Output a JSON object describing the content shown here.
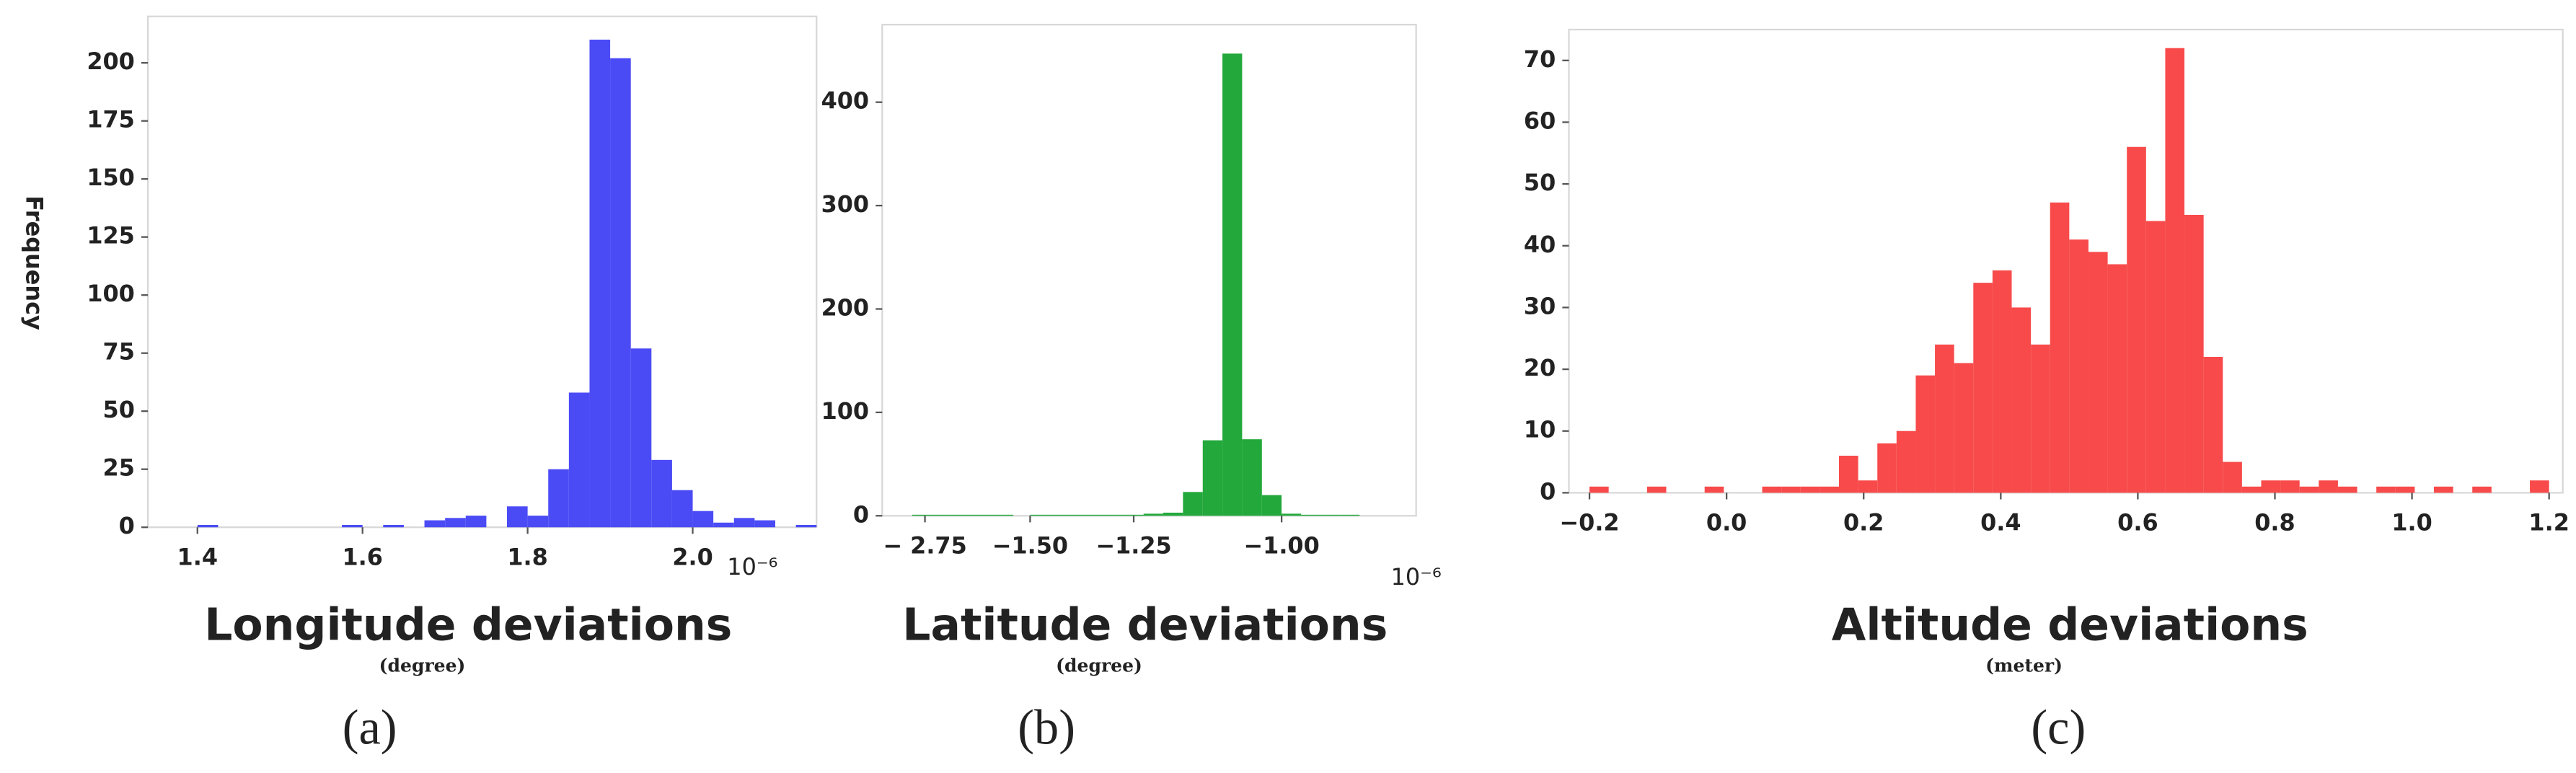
{
  "chart_data": [
    {
      "type": "histogram",
      "color": "#4b4bf6",
      "ylabel": "Frequency",
      "xlabel": "Longitude deviations",
      "unit_label": "(degree)",
      "caption": "(a)",
      "offset_label": "10⁻⁶",
      "bins": [
        1.375,
        1.4,
        1.425,
        1.45,
        1.475,
        1.5,
        1.525,
        1.55,
        1.575,
        1.6,
        1.625,
        1.65,
        1.675,
        1.7,
        1.725,
        1.75,
        1.775,
        1.8,
        1.825,
        1.85,
        1.875,
        1.9,
        1.925,
        1.95,
        1.975,
        2.0,
        2.025,
        2.05,
        2.075,
        2.1,
        2.125,
        2.15
      ],
      "values": [
        0,
        1,
        0,
        0,
        0,
        0,
        0,
        0,
        1,
        0,
        1,
        0,
        3,
        4,
        5,
        0,
        9,
        5,
        25,
        58,
        210,
        202,
        77,
        29,
        16,
        7,
        2,
        4,
        3,
        0,
        1
      ],
      "xlim": [
        1.34,
        2.15
      ],
      "xticks": [
        1.4,
        1.6,
        1.8,
        {
          "value": 2.0,
          "label": "2.0"
        }
      ],
      "ylim": [
        0,
        220
      ],
      "yticks": [
        0,
        25,
        50,
        75,
        100,
        125,
        150,
        175,
        200
      ]
    },
    {
      "type": "histogram",
      "color": "#23a83b",
      "xlabel": "Latitude deviations",
      "unit_label": "(degree)",
      "caption": "(b)",
      "offset_label": "10⁻⁶",
      "bins": [
        -2.9,
        -2.5,
        -2.1,
        -1.7,
        -1.5,
        -1.3,
        -1.2667,
        -1.2333,
        -1.2,
        -1.1667,
        -1.1333,
        -1.1,
        -1.0667,
        -1.0333,
        -1.0,
        -0.9667,
        -0.9333,
        -0.9,
        -0.8667
      ],
      "values": [
        1,
        1,
        1,
        0,
        1,
        1,
        1,
        2,
        3,
        23,
        73,
        447,
        74,
        20,
        2,
        1,
        1,
        1
      ],
      "xlim": [
        -3.25,
        -0.77
      ],
      "xticks": [
        {
          "value": -2.75,
          "label": "− 2.75"
        },
        {
          "value": -1.5,
          "label": "−1.50"
        },
        {
          "value": -1.25,
          "label": "−1.25"
        },
        {
          "value": -1.0,
          "label": "−1.00"
        }
      ],
      "ylim": [
        0,
        475
      ],
      "yticks": [
        0,
        100,
        200,
        300,
        400
      ]
    },
    {
      "type": "histogram",
      "color": "#f84a4a",
      "xlabel": "Altitude deviations",
      "unit_label": "(meter)",
      "caption": "(c)",
      "bins": [
        -0.2,
        -0.172,
        -0.144,
        -0.116,
        -0.088,
        -0.06,
        -0.032,
        -0.004,
        0.024,
        0.052,
        0.08,
        0.108,
        0.136,
        0.164,
        0.192,
        0.22,
        0.248,
        0.276,
        0.304,
        0.332,
        0.36,
        0.388,
        0.416,
        0.444,
        0.472,
        0.5,
        0.528,
        0.556,
        0.584,
        0.612,
        0.64,
        0.668,
        0.696,
        0.724,
        0.752,
        0.78,
        0.808,
        0.836,
        0.864,
        0.892,
        0.92,
        0.948,
        0.976,
        1.004,
        1.032,
        1.06,
        1.088,
        1.116,
        1.144,
        1.172,
        1.2
      ],
      "values": [
        1,
        0,
        0,
        1,
        0,
        0,
        1,
        0,
        0,
        1,
        1,
        1,
        1,
        6,
        2,
        8,
        10,
        19,
        24,
        21,
        34,
        36,
        30,
        24,
        47,
        41,
        39,
        37,
        56,
        44,
        72,
        45,
        22,
        5,
        1,
        2,
        2,
        1,
        2,
        1,
        0,
        1,
        1,
        0,
        1,
        0,
        1,
        0,
        0,
        2
      ],
      "xlim": [
        -0.23,
        1.22
      ],
      "xticks": [
        {
          "value": -0.2,
          "label": "−0.2"
        },
        {
          "value": 0,
          "label": "0.0"
        },
        0.2,
        0.4,
        0.6,
        0.8,
        {
          "value": 1.0,
          "label": "1.0"
        },
        1.2
      ],
      "ylim": [
        0,
        75
      ],
      "yticks": [
        0,
        10,
        20,
        30,
        40,
        50,
        60,
        70
      ]
    }
  ]
}
